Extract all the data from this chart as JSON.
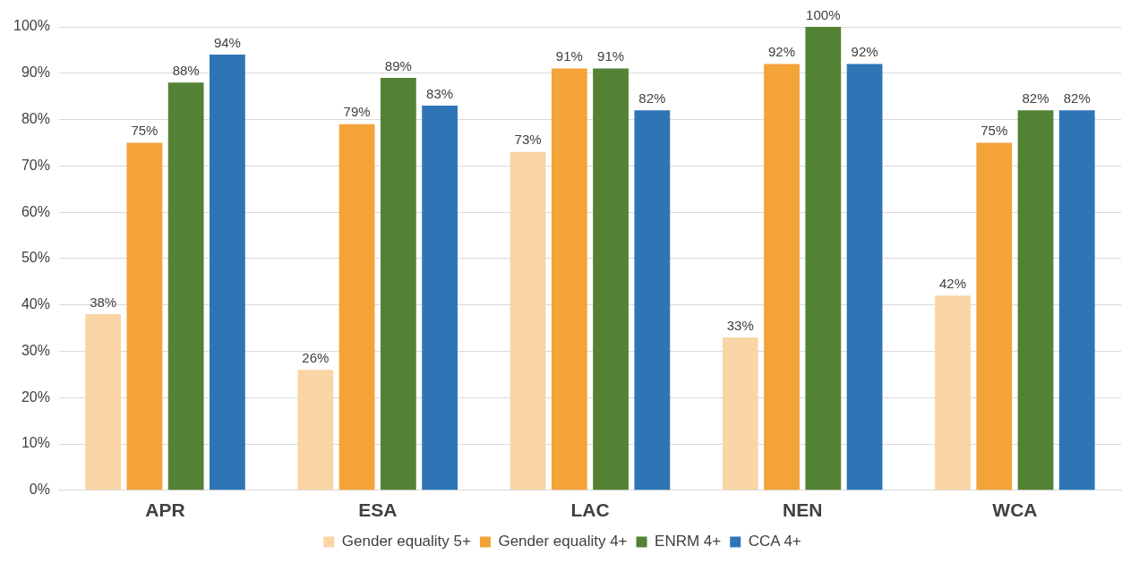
{
  "chart_data": {
    "type": "bar",
    "categories": [
      "APR",
      "ESA",
      "LAC",
      "NEN",
      "WCA"
    ],
    "series": [
      {
        "name": "Gender equality 5+",
        "color": "#fad5a5",
        "values": [
          38,
          26,
          73,
          33,
          42
        ],
        "value_labels": [
          "38%",
          "26%",
          "73%",
          "33%",
          "42%"
        ]
      },
      {
        "name": "Gender equality 4+",
        "color": "#f4a338",
        "values": [
          75,
          79,
          91,
          92,
          75
        ],
        "value_labels": [
          "75%",
          "79%",
          "91%",
          "92%",
          "75%"
        ]
      },
      {
        "name": "ENRM 4+",
        "color": "#548235",
        "values": [
          88,
          89,
          91,
          100,
          82
        ],
        "value_labels": [
          "88%",
          "89%",
          "91%",
          "100%",
          "82%"
        ]
      },
      {
        "name": "CCA 4+",
        "color": "#2e75b6",
        "values": [
          94,
          83,
          82,
          92,
          82
        ],
        "value_labels": [
          "94%",
          "83%",
          "82%",
          "92%",
          "82%"
        ]
      }
    ],
    "ylim": [
      0,
      100
    ],
    "yticks": [
      {
        "value": 0,
        "label": "0%"
      },
      {
        "value": 10,
        "label": "10%"
      },
      {
        "value": 20,
        "label": "20%"
      },
      {
        "value": 30,
        "label": "30%"
      },
      {
        "value": 40,
        "label": "40%"
      },
      {
        "value": 50,
        "label": "50%"
      },
      {
        "value": 60,
        "label": "60%"
      },
      {
        "value": 70,
        "label": "70%"
      },
      {
        "value": 80,
        "label": "80%"
      },
      {
        "value": 90,
        "label": "90%"
      },
      {
        "value": 100,
        "label": "100%"
      }
    ],
    "grid": "y",
    "legend": "bottom"
  }
}
